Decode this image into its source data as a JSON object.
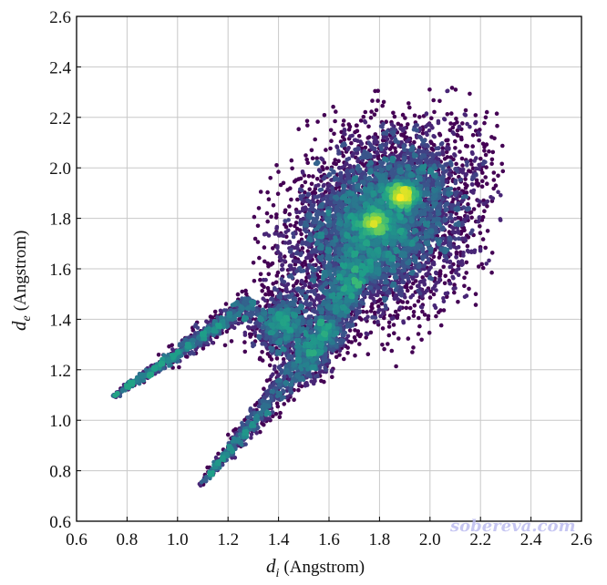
{
  "chart_data": {
    "type": "scatter",
    "subtype": "density-colored fingerprint plot",
    "title": "",
    "xlabel": {
      "symbol": "d",
      "sub": "i",
      "unit": "(Angstrom)"
    },
    "ylabel": {
      "symbol": "d",
      "sub": "e",
      "unit": "(Angstrom)"
    },
    "xlim": [
      0.6,
      2.6
    ],
    "ylim": [
      0.6,
      2.6
    ],
    "xticks": [
      "0.6",
      "0.8",
      "1.0",
      "1.2",
      "1.4",
      "1.6",
      "1.8",
      "2.0",
      "2.2",
      "2.4",
      "2.6"
    ],
    "yticks": [
      "0.6",
      "0.8",
      "1.0",
      "1.2",
      "1.4",
      "1.6",
      "1.8",
      "2.0",
      "2.2",
      "2.4",
      "2.6"
    ],
    "grid": true,
    "colormap": "viridis",
    "colors": {
      "low": "#440154",
      "mid": "#21918c",
      "high": "#fde725",
      "grid": "#c8c8c8",
      "axis": "#000000"
    },
    "regions": [
      {
        "name": "spike-upper",
        "from": [
          0.74,
          1.09
        ],
        "to": [
          1.3,
          1.47
        ]
      },
      {
        "name": "spike-lower",
        "from": [
          1.09,
          0.74
        ],
        "to": [
          1.62,
          1.38
        ]
      },
      {
        "name": "main-body",
        "center": [
          1.8,
          1.78
        ],
        "di_range": [
          1.3,
          2.3
        ],
        "de_range": [
          1.25,
          2.37
        ]
      },
      {
        "name": "lower-lobe",
        "center": [
          1.42,
          1.38
        ]
      }
    ],
    "peaks": [
      [
        1.89,
        1.89
      ],
      [
        1.78,
        1.78
      ]
    ]
  },
  "watermark": "sobereva.com"
}
